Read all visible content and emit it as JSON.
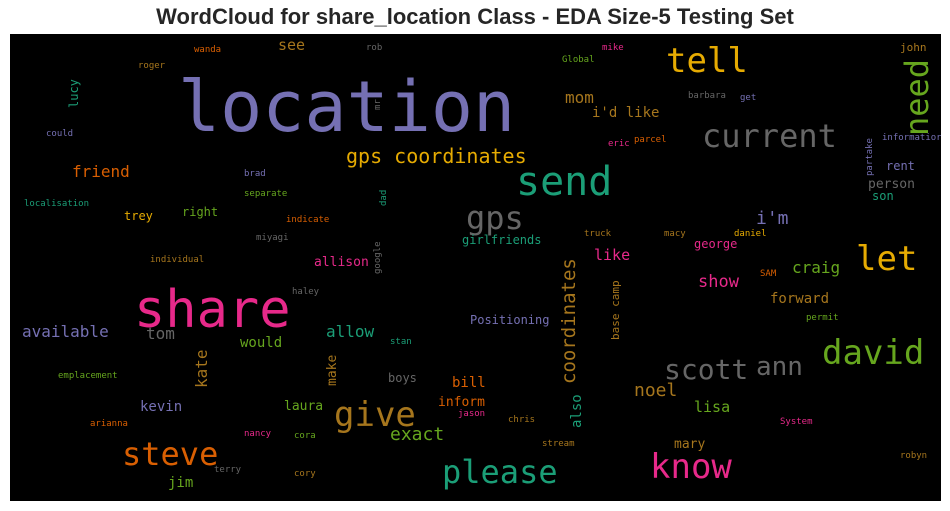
{
  "title": "WordCloud for share_location Class - EDA Size-5 Testing Set",
  "colors": {
    "background": "#000000",
    "purple": "#7570b3",
    "pink": "#e7298a",
    "teal": "#1b9e77",
    "orange": "#d95f02",
    "olive": "#66a61e",
    "gold": "#e6ab02",
    "brown": "#a6761d",
    "gray": "#666666"
  },
  "words": [
    {
      "text": "location",
      "color": "#7570b3"
    },
    {
      "text": "share",
      "color": "#e7298a"
    },
    {
      "text": "send",
      "color": "#1b9e77"
    },
    {
      "text": "tell",
      "color": "#e6ab02"
    },
    {
      "text": "current",
      "color": "#666666"
    },
    {
      "text": "need",
      "color": "#66a61e"
    },
    {
      "text": "gps",
      "color": "#666666"
    },
    {
      "text": "gps coordinates",
      "color": "#e6ab02"
    },
    {
      "text": "let",
      "color": "#e6ab02"
    },
    {
      "text": "david",
      "color": "#66a61e"
    },
    {
      "text": "know",
      "color": "#e7298a"
    },
    {
      "text": "please",
      "color": "#1b9e77"
    },
    {
      "text": "give",
      "color": "#a6761d"
    },
    {
      "text": "steve",
      "color": "#d95f02"
    },
    {
      "text": "scott",
      "color": "#666666"
    },
    {
      "text": "ann",
      "color": "#666666"
    },
    {
      "text": "coordinates",
      "color": "#a6761d"
    },
    {
      "text": "exact",
      "color": "#66a61e"
    },
    {
      "text": "noel",
      "color": "#a6761d"
    },
    {
      "text": "mom",
      "color": "#a6761d"
    },
    {
      "text": "i'd like",
      "color": "#a6761d"
    },
    {
      "text": "i'm",
      "color": "#7570b3"
    },
    {
      "text": "craig",
      "color": "#66a61e"
    },
    {
      "text": "show",
      "color": "#e7298a"
    },
    {
      "text": "forward",
      "color": "#a6761d"
    },
    {
      "text": "friend",
      "color": "#d95f02"
    },
    {
      "text": "see",
      "color": "#a6761d"
    },
    {
      "text": "available",
      "color": "#7570b3"
    },
    {
      "text": "allow",
      "color": "#1b9e77"
    },
    {
      "text": "kate",
      "color": "#a6761d"
    },
    {
      "text": "tom",
      "color": "#666666"
    },
    {
      "text": "would",
      "color": "#66a61e"
    },
    {
      "text": "make",
      "color": "#a6761d"
    },
    {
      "text": "bill",
      "color": "#d95f02"
    },
    {
      "text": "inform",
      "color": "#d95f02"
    },
    {
      "text": "lisa",
      "color": "#66a61e"
    },
    {
      "text": "mary",
      "color": "#a6761d"
    },
    {
      "text": "also",
      "color": "#1b9e77"
    },
    {
      "text": "kevin",
      "color": "#7570b3"
    },
    {
      "text": "laura",
      "color": "#66a61e"
    },
    {
      "text": "jim",
      "color": "#66a61e"
    },
    {
      "text": "allison",
      "color": "#e7298a"
    },
    {
      "text": "like",
      "color": "#e7298a"
    },
    {
      "text": "george",
      "color": "#e7298a"
    },
    {
      "text": "person",
      "color": "#666666"
    },
    {
      "text": "trey",
      "color": "#e6ab02"
    },
    {
      "text": "right",
      "color": "#66a61e"
    },
    {
      "text": "girlfriends",
      "color": "#1b9e77"
    },
    {
      "text": "Positioning",
      "color": "#7570b3"
    },
    {
      "text": "base camp",
      "color": "#a6761d"
    },
    {
      "text": "lucy",
      "color": "#1b9e77"
    },
    {
      "text": "rent",
      "color": "#7570b3"
    },
    {
      "text": "son",
      "color": "#1b9e77"
    },
    {
      "text": "john",
      "color": "#a6761d"
    },
    {
      "text": "boys",
      "color": "#666666"
    },
    {
      "text": "wanda",
      "color": "#d95f02"
    },
    {
      "text": "rob",
      "color": "#666666"
    },
    {
      "text": "mike",
      "color": "#e7298a"
    },
    {
      "text": "Global",
      "color": "#66a61e"
    },
    {
      "text": "roger",
      "color": "#a6761d"
    },
    {
      "text": "mr",
      "color": "#666666"
    },
    {
      "text": "barbara",
      "color": "#666666"
    },
    {
      "text": "get",
      "color": "#7570b3"
    },
    {
      "text": "could",
      "color": "#7570b3"
    },
    {
      "text": "parcel",
      "color": "#d95f02"
    },
    {
      "text": "eric",
      "color": "#e7298a"
    },
    {
      "text": "informatior",
      "color": "#7570b3"
    },
    {
      "text": "partake",
      "color": "#7570b3"
    },
    {
      "text": "brad",
      "color": "#7570b3"
    },
    {
      "text": "separate",
      "color": "#66a61e"
    },
    {
      "text": "dad",
      "color": "#1b9e77"
    },
    {
      "text": "localisation",
      "color": "#1b9e77"
    },
    {
      "text": "indicate",
      "color": "#d95f02"
    },
    {
      "text": "miyagi",
      "color": "#666666"
    },
    {
      "text": "truck",
      "color": "#a6761d"
    },
    {
      "text": "macy",
      "color": "#a6761d"
    },
    {
      "text": "daniel",
      "color": "#e6ab02"
    },
    {
      "text": "individual",
      "color": "#a6761d"
    },
    {
      "text": "google",
      "color": "#666666"
    },
    {
      "text": "SAM",
      "color": "#d95f02"
    },
    {
      "text": "haley",
      "color": "#666666"
    },
    {
      "text": "permit",
      "color": "#66a61e"
    },
    {
      "text": "stan",
      "color": "#1b9e77"
    },
    {
      "text": "emplacement",
      "color": "#66a61e"
    },
    {
      "text": "jason",
      "color": "#e7298a"
    },
    {
      "text": "chris",
      "color": "#a6761d"
    },
    {
      "text": "System",
      "color": "#e7298a"
    },
    {
      "text": "arianna",
      "color": "#d95f02"
    },
    {
      "text": "nancy",
      "color": "#e7298a"
    },
    {
      "text": "cora",
      "color": "#66a61e"
    },
    {
      "text": "stream",
      "color": "#a6761d"
    },
    {
      "text": "terry",
      "color": "#666666"
    },
    {
      "text": "cory",
      "color": "#a6761d"
    },
    {
      "text": "robyn",
      "color": "#a6761d"
    }
  ]
}
